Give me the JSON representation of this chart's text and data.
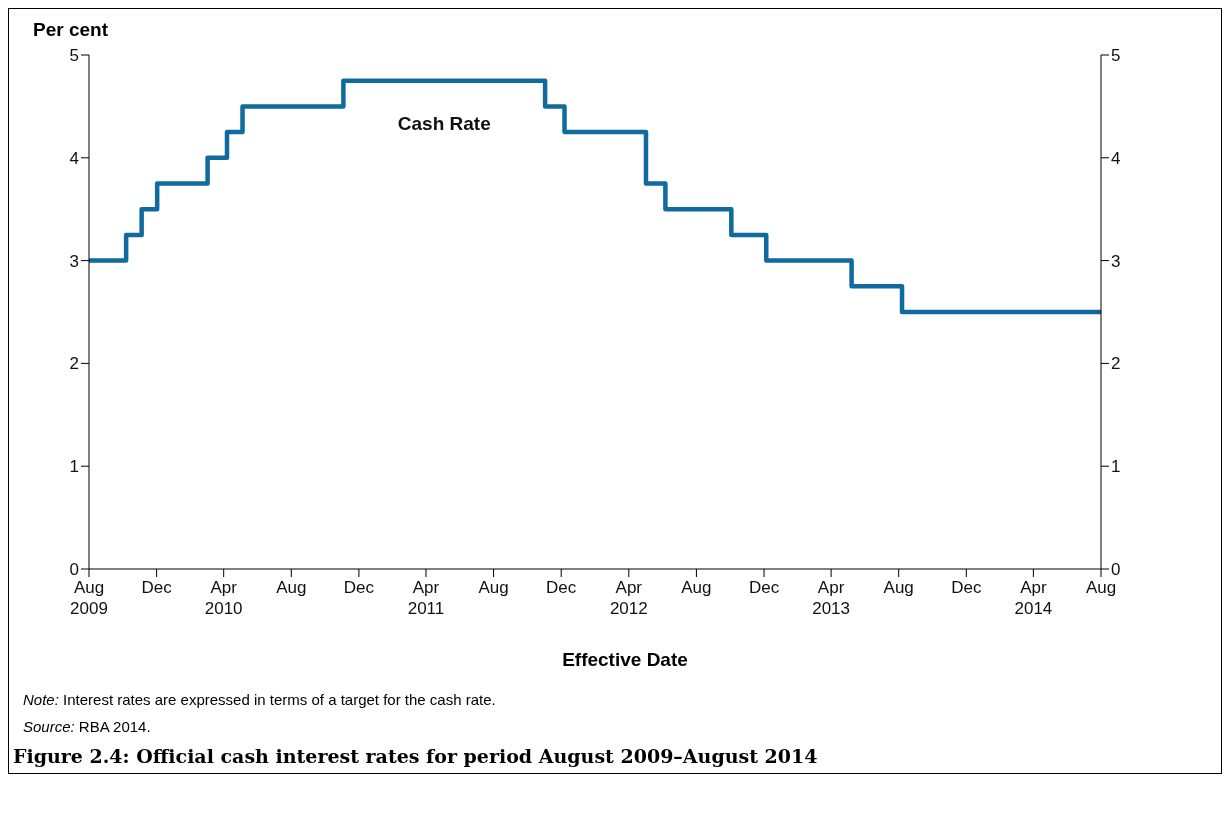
{
  "chart_data": {
    "type": "step",
    "title": "Figure 2.4: Official cash interest rates for period August 2009–August 2014",
    "xlabel": "Effective Date",
    "ylabel": "Per cent",
    "annotations": [
      "Note: Interest rates are expressed in terms of a target for the cash rate.",
      "Source: RBA 2014."
    ],
    "x": [
      "2009-08",
      "2009-10-07",
      "2009-11-04",
      "2009-12-02",
      "2010-03-03",
      "2010-04-07",
      "2010-05-05",
      "2010-11-03",
      "2011-11-02",
      "2011-12-07",
      "2012-05-02",
      "2012-06-06",
      "2012-10-03",
      "2012-12-05",
      "2013-05-08",
      "2013-08-07",
      "2014-08"
    ],
    "series": [
      {
        "name": "Cash Rate",
        "color": "#0f6a9e",
        "values": [
          3,
          3.25,
          3.5,
          3.75,
          4,
          4.25,
          4.5,
          4.75,
          4.5,
          4.25,
          3.75,
          3.5,
          3.25,
          3,
          2.75,
          2.5,
          2.5
        ]
      }
    ],
    "xlim": [
      "2009-08",
      "2014-08"
    ],
    "xticks": [
      {
        "value": "2009-08",
        "label": "Aug\n2009"
      },
      {
        "value": "2009-12",
        "label": "Dec"
      },
      {
        "value": "2010-04",
        "label": "Apr\n2010"
      },
      {
        "value": "2010-08",
        "label": "Aug"
      },
      {
        "value": "2010-12",
        "label": "Dec"
      },
      {
        "value": "2011-04",
        "label": "Apr\n2011"
      },
      {
        "value": "2011-08",
        "label": "Aug"
      },
      {
        "value": "2011-12",
        "label": "Dec"
      },
      {
        "value": "2012-04",
        "label": "Apr\n2012"
      },
      {
        "value": "2012-08",
        "label": "Aug"
      },
      {
        "value": "2012-12",
        "label": "Dec"
      },
      {
        "value": "2013-04",
        "label": "Apr\n2013"
      },
      {
        "value": "2013-08",
        "label": "Aug"
      },
      {
        "value": "2013-12",
        "label": "Dec"
      },
      {
        "value": "2014-04",
        "label": "Apr\n2014"
      },
      {
        "value": "2014-08",
        "label": "Aug"
      }
    ],
    "ylim": [
      0,
      5
    ],
    "yticks": [
      0,
      1,
      2,
      3,
      4,
      5
    ],
    "y2lim": [
      0,
      5
    ],
    "y2ticks": [
      0,
      1,
      2,
      3,
      4,
      5
    ],
    "grid": false,
    "marker": "none",
    "line_style": "solid"
  }
}
